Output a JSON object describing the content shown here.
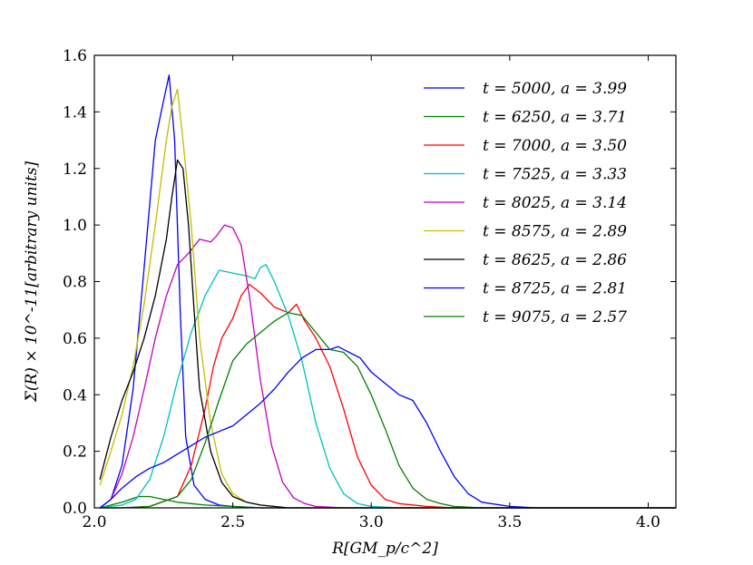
{
  "chart_data": {
    "type": "line",
    "title": "",
    "xlabel": "R[GM_p/c^2]",
    "ylabel": "Σ(R) × 10^-11[arbitrary units]",
    "xlim": [
      2.0,
      4.1
    ],
    "ylim": [
      0.0,
      1.6
    ],
    "xticks": [
      2.0,
      2.5,
      3.0,
      3.5,
      4.0
    ],
    "xtick_labels": [
      "2.0",
      "2.5",
      "3.0",
      "3.5",
      "4.0"
    ],
    "yticks": [
      0.0,
      0.2,
      0.4,
      0.6,
      0.8,
      1.0,
      1.2,
      1.4,
      1.6
    ],
    "ytick_labels": [
      "0.0",
      "0.2",
      "0.4",
      "0.6",
      "0.8",
      "1.0",
      "1.2",
      "1.4",
      "1.6"
    ],
    "legend_position": "top-right",
    "series": [
      {
        "name": "t = 5000, a = 3.99",
        "color": "#0000ff",
        "x": [
          2.02,
          2.06,
          2.1,
          2.14,
          2.18,
          2.22,
          2.25,
          2.27,
          2.29,
          2.31,
          2.33,
          2.36,
          2.4,
          2.45,
          2.5,
          2.6,
          2.8,
          3.0,
          3.5,
          4.1
        ],
        "y": [
          0.0,
          0.03,
          0.15,
          0.42,
          0.85,
          1.3,
          1.44,
          1.53,
          1.3,
          0.7,
          0.25,
          0.08,
          0.03,
          0.01,
          0.005,
          0.0,
          0.0,
          0.0,
          0.0,
          0.0
        ]
      },
      {
        "name": "t = 6250, a = 3.71",
        "color": "#008000",
        "x": [
          2.02,
          2.1,
          2.16,
          2.2,
          2.25,
          2.3,
          2.35,
          2.4,
          2.5,
          2.6,
          3.0,
          4.1
        ],
        "y": [
          0.0,
          0.02,
          0.04,
          0.04,
          0.03,
          0.02,
          0.015,
          0.01,
          0.005,
          0.0,
          0.0,
          0.0
        ]
      },
      {
        "name": "t = 7000, a = 3.50",
        "color": "#ff0000",
        "x": [
          2.02,
          2.1,
          2.2,
          2.3,
          2.35,
          2.4,
          2.43,
          2.46,
          2.5,
          2.53,
          2.56,
          2.6,
          2.65,
          2.7,
          2.73,
          2.76,
          2.8,
          2.85,
          2.9,
          2.95,
          3.0,
          3.05,
          3.1,
          3.2,
          3.3,
          3.5,
          4.1
        ],
        "y": [
          0.0,
          0.0,
          0.005,
          0.04,
          0.15,
          0.35,
          0.5,
          0.6,
          0.67,
          0.75,
          0.79,
          0.76,
          0.71,
          0.69,
          0.72,
          0.66,
          0.6,
          0.5,
          0.35,
          0.18,
          0.08,
          0.03,
          0.015,
          0.005,
          0.0,
          0.0,
          0.0
        ]
      },
      {
        "name": "t = 7525, a = 3.33",
        "color": "#00bfbf",
        "x": [
          2.02,
          2.1,
          2.15,
          2.2,
          2.25,
          2.3,
          2.35,
          2.4,
          2.45,
          2.5,
          2.55,
          2.58,
          2.6,
          2.62,
          2.65,
          2.7,
          2.75,
          2.8,
          2.85,
          2.9,
          2.95,
          3.0,
          3.1,
          3.5,
          4.1
        ],
        "y": [
          0.0,
          0.01,
          0.03,
          0.1,
          0.25,
          0.45,
          0.62,
          0.75,
          0.84,
          0.83,
          0.82,
          0.81,
          0.85,
          0.86,
          0.8,
          0.68,
          0.52,
          0.3,
          0.14,
          0.05,
          0.015,
          0.005,
          0.0,
          0.0,
          0.0
        ]
      },
      {
        "name": "t = 8025, a = 3.14",
        "color": "#bf00bf",
        "x": [
          2.02,
          2.06,
          2.1,
          2.14,
          2.18,
          2.22,
          2.26,
          2.3,
          2.34,
          2.38,
          2.42,
          2.44,
          2.47,
          2.5,
          2.53,
          2.56,
          2.6,
          2.64,
          2.68,
          2.72,
          2.76,
          2.8,
          2.9,
          3.0,
          3.5,
          4.1
        ],
        "y": [
          0.0,
          0.03,
          0.12,
          0.25,
          0.42,
          0.6,
          0.75,
          0.86,
          0.9,
          0.95,
          0.94,
          0.96,
          1.0,
          0.99,
          0.93,
          0.75,
          0.45,
          0.22,
          0.09,
          0.035,
          0.015,
          0.005,
          0.0,
          0.0,
          0.0,
          0.0
        ]
      },
      {
        "name": "t = 8575, a = 2.89",
        "color": "#bfbf00",
        "x": [
          2.02,
          2.06,
          2.1,
          2.14,
          2.18,
          2.22,
          2.26,
          2.28,
          2.3,
          2.32,
          2.35,
          2.38,
          2.42,
          2.46,
          2.5,
          2.55,
          2.6,
          2.7,
          3.0,
          4.1
        ],
        "y": [
          0.08,
          0.2,
          0.33,
          0.5,
          0.72,
          1.0,
          1.3,
          1.42,
          1.48,
          1.3,
          1.0,
          0.6,
          0.3,
          0.12,
          0.05,
          0.02,
          0.01,
          0.0,
          0.0,
          0.0
        ]
      },
      {
        "name": "t = 8625, a = 2.86",
        "color": "#000000",
        "x": [
          2.02,
          2.06,
          2.1,
          2.14,
          2.18,
          2.22,
          2.26,
          2.28,
          2.3,
          2.32,
          2.34,
          2.36,
          2.38,
          2.42,
          2.46,
          2.5,
          2.55,
          2.6,
          2.7,
          3.0,
          4.1
        ],
        "y": [
          0.1,
          0.25,
          0.38,
          0.48,
          0.6,
          0.75,
          0.95,
          1.1,
          1.23,
          1.2,
          1.0,
          0.7,
          0.42,
          0.2,
          0.09,
          0.04,
          0.02,
          0.01,
          0.0,
          0.0,
          0.0
        ]
      },
      {
        "name": "t = 8725, a = 2.81",
        "color": "#0000ff",
        "x": [
          2.02,
          2.06,
          2.1,
          2.15,
          2.2,
          2.25,
          2.3,
          2.35,
          2.4,
          2.45,
          2.5,
          2.55,
          2.6,
          2.65,
          2.7,
          2.75,
          2.8,
          2.85,
          2.88,
          2.92,
          2.96,
          3.0,
          3.05,
          3.1,
          3.15,
          3.2,
          3.25,
          3.3,
          3.35,
          3.4,
          3.5,
          3.6,
          4.1
        ],
        "y": [
          0.0,
          0.03,
          0.07,
          0.11,
          0.14,
          0.16,
          0.19,
          0.22,
          0.25,
          0.27,
          0.29,
          0.33,
          0.37,
          0.42,
          0.48,
          0.53,
          0.56,
          0.56,
          0.57,
          0.55,
          0.53,
          0.48,
          0.44,
          0.4,
          0.38,
          0.3,
          0.2,
          0.11,
          0.05,
          0.02,
          0.005,
          0.0,
          0.0
        ]
      },
      {
        "name": "t = 9075, a = 2.57",
        "color": "#008000",
        "x": [
          2.02,
          2.1,
          2.2,
          2.3,
          2.35,
          2.4,
          2.45,
          2.5,
          2.55,
          2.6,
          2.65,
          2.7,
          2.75,
          2.8,
          2.85,
          2.9,
          2.95,
          3.0,
          3.05,
          3.1,
          3.15,
          3.2,
          3.25,
          3.3,
          3.4,
          3.5,
          4.1
        ],
        "y": [
          0.0,
          0.0,
          0.005,
          0.04,
          0.1,
          0.23,
          0.38,
          0.52,
          0.58,
          0.62,
          0.66,
          0.69,
          0.68,
          0.62,
          0.56,
          0.55,
          0.5,
          0.4,
          0.28,
          0.15,
          0.07,
          0.03,
          0.015,
          0.005,
          0.0,
          0.0,
          0.0
        ]
      }
    ]
  }
}
